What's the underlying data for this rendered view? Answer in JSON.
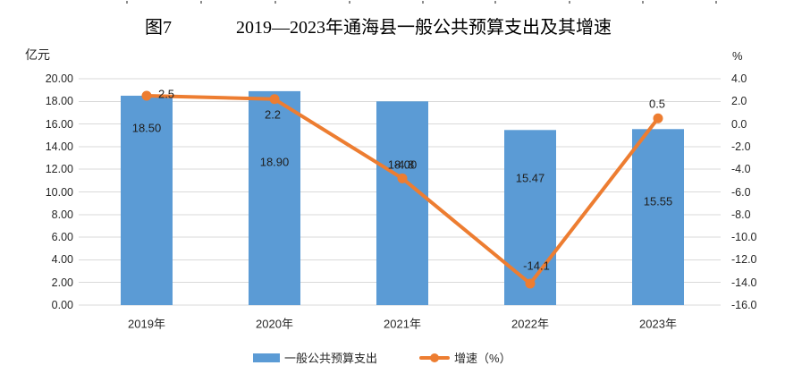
{
  "header": {
    "figure_label": "图7",
    "title": "2019—2023年通海县一般公共预算支出及其增速"
  },
  "chart_data": {
    "type": "bar",
    "combo": "bar + line (dual axis)",
    "categories": [
      "2019年",
      "2020年",
      "2021年",
      "2022年",
      "2023年"
    ],
    "series": [
      {
        "name": "一般公共预算支出",
        "type": "bar",
        "axis": "left",
        "unit": "亿元",
        "color": "#5B9BD5",
        "values": [
          18.5,
          18.9,
          18.0,
          15.47,
          15.55
        ],
        "labels": [
          "18.50",
          "18.90",
          "18.00",
          "15.47",
          "15.55"
        ]
      },
      {
        "name": "增速（%）",
        "type": "line",
        "axis": "right",
        "unit": "%",
        "color": "#ED7D31",
        "values": [
          2.5,
          2.2,
          -4.8,
          -14.1,
          0.5
        ],
        "labels": [
          "2.5",
          "2.2",
          "-4.8",
          "-14.1",
          "0.5"
        ]
      }
    ],
    "left_axis": {
      "title": "亿元",
      "min": 0,
      "max": 20,
      "step": 2,
      "ticks": [
        "20.00",
        "18.00",
        "16.00",
        "14.00",
        "12.00",
        "10.00",
        "8.00",
        "6.00",
        "4.00",
        "2.00",
        "0.00"
      ]
    },
    "right_axis": {
      "title": "%",
      "min": -16,
      "max": 4,
      "step": 2,
      "ticks": [
        "4.0",
        "2.0",
        "0.0",
        "-2.0",
        "-4.0",
        "-6.0",
        "-8.0",
        "-10.0",
        "-12.0",
        "-14.0",
        "-16.0"
      ]
    },
    "grid": true,
    "legend_position": "bottom"
  },
  "colors": {
    "bar": "#5B9BD5",
    "line": "#ED7D31",
    "gridline": "#D9D9D9",
    "text": "#262626",
    "background": "#FFFFFF"
  }
}
